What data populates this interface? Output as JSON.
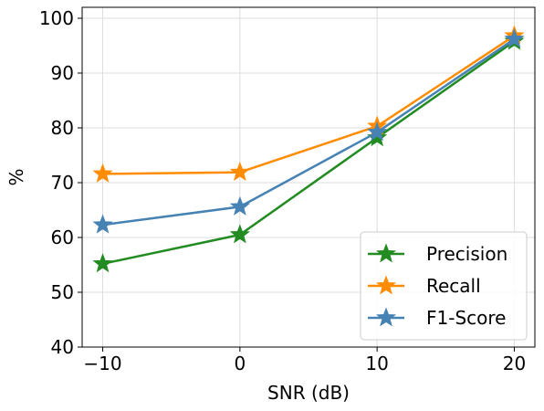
{
  "chart_data": {
    "type": "line",
    "title": "",
    "xlabel": "SNR (dB)",
    "ylabel": "%",
    "x": [
      -10,
      0,
      10,
      20
    ],
    "x_tick_labels": [
      "−10",
      "0",
      "10",
      "20"
    ],
    "y_tick_labels": [
      "40",
      "50",
      "60",
      "70",
      "80",
      "90",
      "100"
    ],
    "xlim": [
      -11.5,
      21.5
    ],
    "ylim": [
      40,
      102
    ],
    "grid": true,
    "legend_position": "lower-right",
    "marker": "star",
    "series": [
      {
        "name": "Precision",
        "color": "#228B22",
        "values": [
          55.2,
          60.5,
          78.2,
          95.8
        ]
      },
      {
        "name": "Recall",
        "color": "#FF8C00",
        "values": [
          71.6,
          71.9,
          80.3,
          96.8
        ]
      },
      {
        "name": "F1-Score",
        "color": "#4682B4",
        "values": [
          62.3,
          65.6,
          79.2,
          96.2
        ]
      }
    ]
  }
}
